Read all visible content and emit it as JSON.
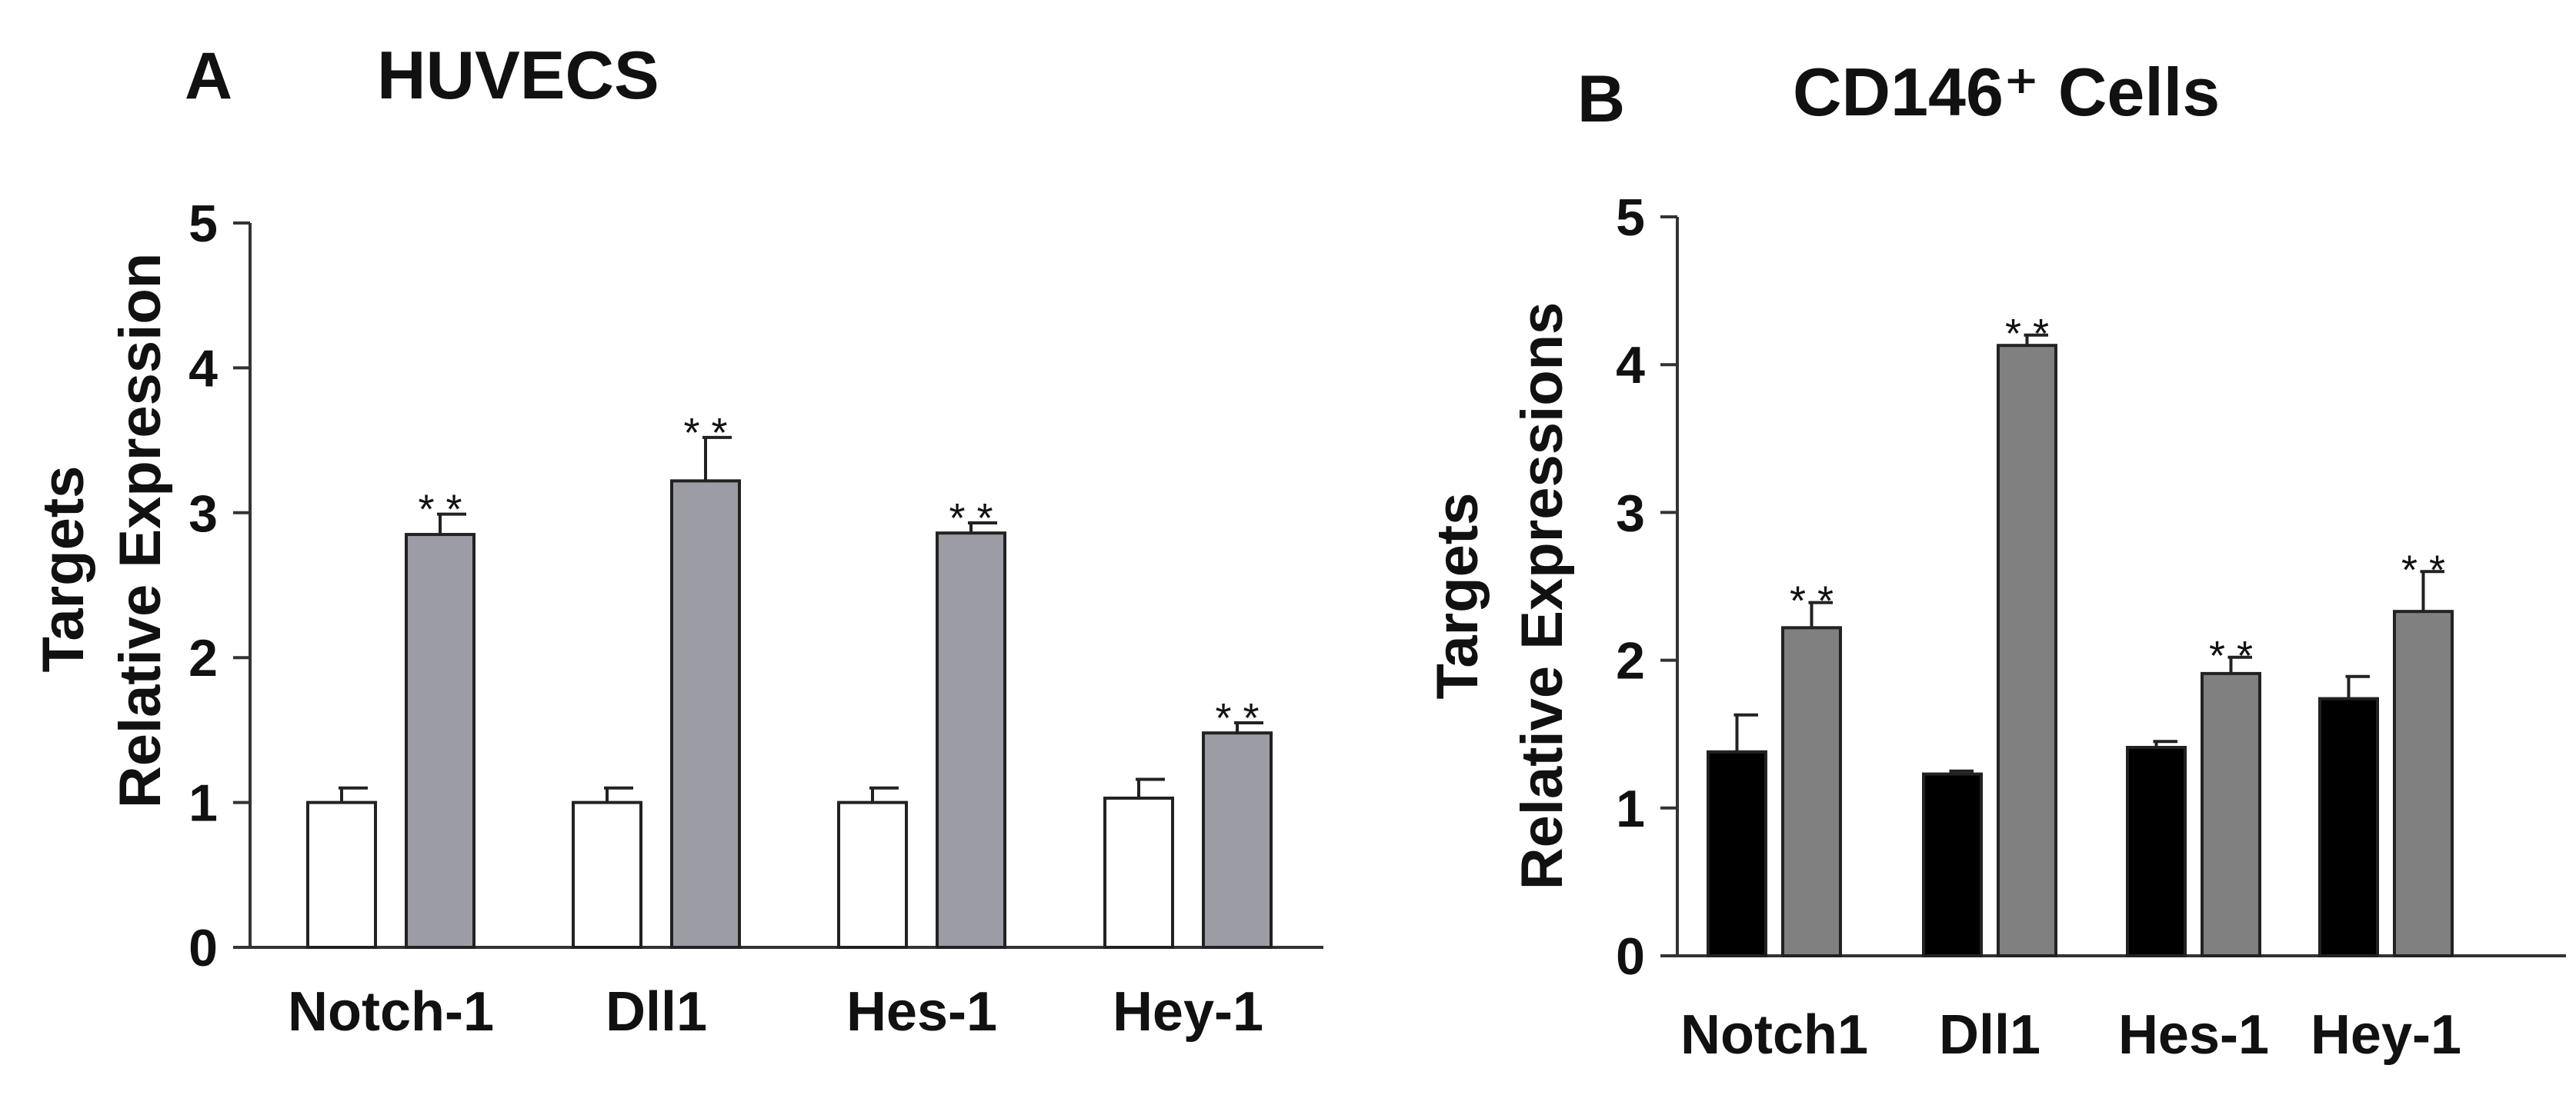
{
  "chart_data": [
    {
      "panel": "A",
      "title": "HUVECS",
      "type": "bar",
      "ylabel": "Targets",
      "ylabel2": "Relative Expression",
      "ylim": [
        0,
        5
      ],
      "yticks": [
        "0",
        "1",
        "2",
        "3",
        "4",
        "5"
      ],
      "categories": [
        "Notch-1",
        "Dll1",
        "Hes-1",
        "Hey-1"
      ],
      "series": [
        {
          "values": [
            1.0,
            1.0,
            1.0,
            1.03
          ],
          "errors": [
            0.1,
            0.1,
            0.1,
            0.13
          ],
          "color": "#ffffff"
        },
        {
          "values": [
            2.85,
            3.22,
            2.86,
            1.48
          ],
          "errors": [
            0.14,
            0.3,
            0.07,
            0.07
          ],
          "color": "#9c9ca4"
        }
      ],
      "annotations": [
        "* *",
        "* *",
        "* *",
        "* *"
      ]
    },
    {
      "panel": "B",
      "title": "CD146⁺ Cells",
      "type": "bar",
      "ylabel": "Targets",
      "ylabel2": "Relative Expressions",
      "ylim": [
        0,
        5
      ],
      "yticks": [
        "0",
        "1",
        "2",
        "3",
        "4",
        "5"
      ],
      "categories": [
        "Notch1",
        "Dll1",
        "Hes-1",
        "Hey-1"
      ],
      "series": [
        {
          "values": [
            1.38,
            1.23,
            1.41,
            1.74
          ],
          "errors": [
            0.25,
            0.02,
            0.04,
            0.15
          ],
          "color": "#000000"
        },
        {
          "values": [
            2.22,
            4.13,
            1.91,
            2.33
          ],
          "errors": [
            0.17,
            0.07,
            0.11,
            0.27
          ],
          "color": "#808080"
        }
      ],
      "annotations": [
        "* *",
        "* *",
        "* *",
        "* *"
      ]
    }
  ]
}
